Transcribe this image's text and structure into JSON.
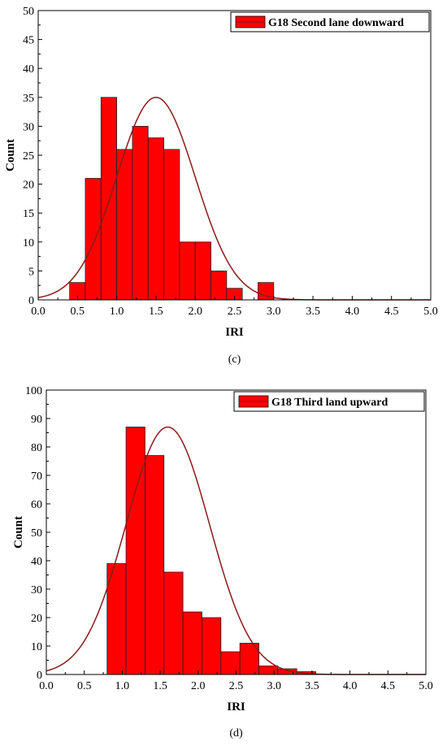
{
  "chart_data": [
    {
      "type": "bar",
      "panel_label": "(c)",
      "xlabel": "IRI",
      "ylabel": "Count",
      "xlim": [
        0,
        5.0
      ],
      "ylim": [
        0,
        50
      ],
      "xticks": [
        "0.0",
        "0.5",
        "1.0",
        "1.5",
        "2.0",
        "2.5",
        "3.0",
        "3.5",
        "4.0",
        "4.5",
        "5.0"
      ],
      "yticks": [
        "0",
        "5",
        "10",
        "15",
        "20",
        "25",
        "30",
        "35",
        "40",
        "45",
        "50"
      ],
      "legend": "G18 Second lane downward",
      "legend_position": "top-right",
      "bar_color": "#ff0000",
      "curve_color": "#8b1a1a",
      "bins": [
        {
          "x0": 0.4,
          "x1": 0.6,
          "count": 3
        },
        {
          "x0": 0.6,
          "x1": 0.8,
          "count": 21
        },
        {
          "x0": 0.8,
          "x1": 1.0,
          "count": 35
        },
        {
          "x0": 1.0,
          "x1": 1.2,
          "count": 26
        },
        {
          "x0": 1.2,
          "x1": 1.4,
          "count": 30
        },
        {
          "x0": 1.4,
          "x1": 1.6,
          "count": 28
        },
        {
          "x0": 1.6,
          "x1": 1.8,
          "count": 26
        },
        {
          "x0": 1.8,
          "x1": 2.0,
          "count": 10
        },
        {
          "x0": 2.0,
          "x1": 2.2,
          "count": 10
        },
        {
          "x0": 2.2,
          "x1": 2.4,
          "count": 5
        },
        {
          "x0": 2.4,
          "x1": 2.6,
          "count": 2
        },
        {
          "x0": 2.6,
          "x1": 2.8,
          "count": 0
        },
        {
          "x0": 2.8,
          "x1": 3.0,
          "count": 3
        }
      ],
      "normal_fit": {
        "mean": 1.5,
        "sd": 0.5,
        "peak": 35
      }
    },
    {
      "type": "bar",
      "panel_label": "(d)",
      "xlabel": "IRI",
      "ylabel": "Count",
      "xlim": [
        0,
        5.0
      ],
      "ylim": [
        0,
        100
      ],
      "xticks": [
        "0.0",
        "0.5",
        "1.0",
        "1.5",
        "2.0",
        "2.5",
        "3.0",
        "3.5",
        "4.0",
        "4.5",
        "5.0"
      ],
      "yticks": [
        "0",
        "10",
        "20",
        "30",
        "40",
        "50",
        "60",
        "70",
        "80",
        "90",
        "100"
      ],
      "legend": "G18 Third land upward",
      "legend_position": "top-right",
      "bar_color": "#ff0000",
      "curve_color": "#8b1a1a",
      "bins": [
        {
          "x0": 0.8,
          "x1": 1.05,
          "count": 39
        },
        {
          "x0": 1.05,
          "x1": 1.3,
          "count": 87
        },
        {
          "x0": 1.3,
          "x1": 1.55,
          "count": 77
        },
        {
          "x0": 1.55,
          "x1": 1.8,
          "count": 36
        },
        {
          "x0": 1.8,
          "x1": 2.05,
          "count": 22
        },
        {
          "x0": 2.05,
          "x1": 2.3,
          "count": 20
        },
        {
          "x0": 2.3,
          "x1": 2.55,
          "count": 8
        },
        {
          "x0": 2.55,
          "x1": 2.8,
          "count": 11
        },
        {
          "x0": 2.8,
          "x1": 3.05,
          "count": 3
        },
        {
          "x0": 3.05,
          "x1": 3.3,
          "count": 2
        },
        {
          "x0": 3.3,
          "x1": 3.55,
          "count": 1
        }
      ],
      "normal_fit": {
        "mean": 1.6,
        "sd": 0.55,
        "peak": 87
      }
    }
  ]
}
